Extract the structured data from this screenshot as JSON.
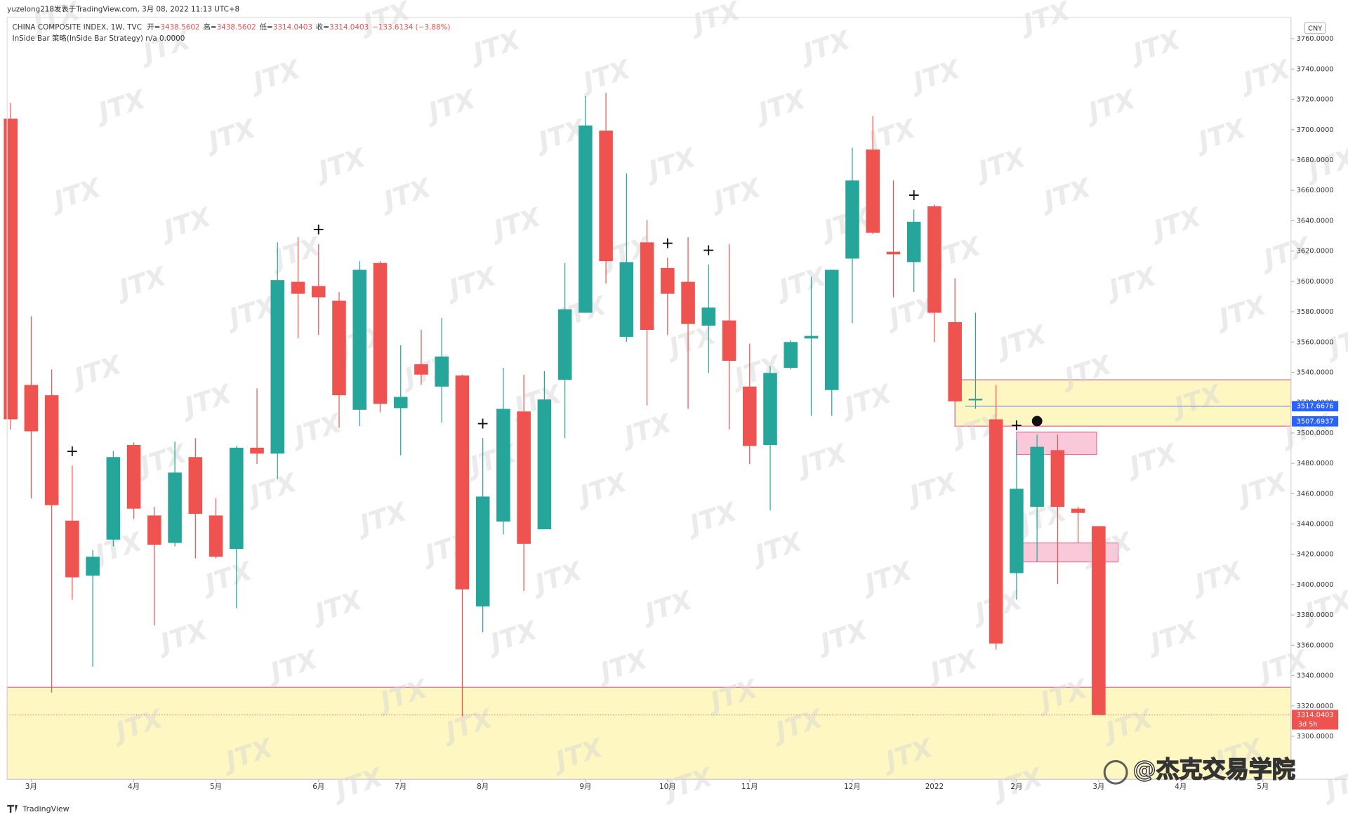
{
  "chart_data": {
    "type": "candlestick",
    "subtitle": "yuzelong218发表于TradingView.com, 3月 08, 2022 11:13 UTC+8",
    "title": "CHINA COMPOSITE INDEX, 1W, TVC",
    "ohlc_labels": [
      "开=",
      "高=",
      "低=",
      "收="
    ],
    "change": "−133.6134 (−3.88%)",
    "indicator": "InSide Bar 策略(InSide Bar Strategy)  n/a  0.0000",
    "currency": "CNY",
    "countdown": "3d 5h",
    "watermark": "JTX",
    "credit": "@杰克交易学院",
    "brand": "TradingView",
    "up_color": "#26a69a",
    "down_color": "#ef5350",
    "xlim": [
      -0.17,
      62.37
    ],
    "ylim": [
      3271.7,
      3774.2
    ],
    "xticks": [
      {
        "value": 1,
        "label": "3月"
      },
      {
        "value": 6,
        "label": "4月"
      },
      {
        "value": 10,
        "label": "5月"
      },
      {
        "value": 15,
        "label": "6月"
      },
      {
        "value": 19,
        "label": "7月"
      },
      {
        "value": 23,
        "label": "8月"
      },
      {
        "value": 28,
        "label": "9月"
      },
      {
        "value": 32,
        "label": "10月"
      },
      {
        "value": 36,
        "label": "11月"
      },
      {
        "value": 41,
        "label": "12月"
      },
      {
        "value": 45,
        "label": "2022"
      },
      {
        "value": 49,
        "label": "2月"
      },
      {
        "value": 53,
        "label": "3月"
      },
      {
        "value": 57,
        "label": "4月"
      },
      {
        "value": 61,
        "label": "5月"
      }
    ],
    "yticks": [
      {
        "value": 3300,
        "label": "3300.0000"
      },
      {
        "value": 3320,
        "label": "3320.0000"
      },
      {
        "value": 3340,
        "label": "3340.0000"
      },
      {
        "value": 3360,
        "label": "3360.0000"
      },
      {
        "value": 3380,
        "label": "3380.0000"
      },
      {
        "value": 3400,
        "label": "3400.0000"
      },
      {
        "value": 3420,
        "label": "3420.0000"
      },
      {
        "value": 3440,
        "label": "3440.0000"
      },
      {
        "value": 3460,
        "label": "3460.0000"
      },
      {
        "value": 3480,
        "label": "3480.0000"
      },
      {
        "value": 3500,
        "label": "3500.0000"
      },
      {
        "value": 3520,
        "label": "3520.0000"
      },
      {
        "value": 3540,
        "label": "3540.0000"
      },
      {
        "value": 3560,
        "label": "3560.0000"
      },
      {
        "value": 3580,
        "label": "3580.0000"
      },
      {
        "value": 3600,
        "label": "3600.0000"
      },
      {
        "value": 3620,
        "label": "3620.0000"
      },
      {
        "value": 3640,
        "label": "3640.0000"
      },
      {
        "value": 3660,
        "label": "3660.0000"
      },
      {
        "value": 3680,
        "label": "3680.0000"
      },
      {
        "value": 3700,
        "label": "3700.0000"
      },
      {
        "value": 3720,
        "label": "3720.0000"
      },
      {
        "value": 3740,
        "label": "3740.0000"
      },
      {
        "value": 3760,
        "label": "3760.0000"
      }
    ],
    "x": [
      0,
      1,
      2,
      3,
      4,
      5,
      6,
      7,
      8,
      9,
      10,
      11,
      12,
      13,
      14,
      15,
      16,
      17,
      18,
      19,
      20,
      21,
      22,
      23,
      24,
      25,
      26,
      27,
      28,
      29,
      30,
      31,
      32,
      33,
      34,
      35,
      36,
      37,
      38,
      39,
      40,
      41,
      42,
      43,
      44,
      45,
      46,
      47,
      48,
      49,
      50,
      51,
      52,
      53
    ],
    "candles": [
      {
        "o": 3707.3,
        "h": 3717.5,
        "l": 3502.2,
        "c": 3509.0
      },
      {
        "o": 3531.7,
        "h": 3577.0,
        "l": 3456.9,
        "c": 3501.1
      },
      {
        "o": 3524.9,
        "h": 3541.9,
        "l": 3328.9,
        "c": 3452.4
      },
      {
        "o": 3442.2,
        "h": 3478.5,
        "l": 3390.1,
        "c": 3404.8,
        "signal": "+"
      },
      {
        "o": 3405.9,
        "h": 3422.9,
        "l": 3345.9,
        "c": 3418.4
      },
      {
        "o": 3429.7,
        "h": 3488.1,
        "l": 3425.2,
        "c": 3484.1
      },
      {
        "o": 3492.1,
        "h": 3493.8,
        "l": 3443.3,
        "c": 3450.1
      },
      {
        "o": 3445.6,
        "h": 3451.3,
        "l": 3373.1,
        "c": 3426.3
      },
      {
        "o": 3427.5,
        "h": 3494.3,
        "l": 3425.2,
        "c": 3473.9
      },
      {
        "o": 3484.1,
        "h": 3496.6,
        "l": 3417.3,
        "c": 3446.7
      },
      {
        "o": 3445.6,
        "h": 3456.9,
        "l": 3417.3,
        "c": 3418.4
      },
      {
        "o": 3423.5,
        "h": 3491.5,
        "l": 3384.4,
        "c": 3490.3
      },
      {
        "o": 3490.3,
        "h": 3529.4,
        "l": 3479.6,
        "c": 3486.4
      },
      {
        "o": 3486.4,
        "h": 3625.7,
        "l": 3469.4,
        "c": 3600.8
      },
      {
        "o": 3599.7,
        "h": 3629.1,
        "l": 3562.3,
        "c": 3591.8
      },
      {
        "o": 3596.9,
        "h": 3624.6,
        "l": 3564.6,
        "c": 3589.5,
        "signal": "+"
      },
      {
        "o": 3587.2,
        "h": 3592.9,
        "l": 3503.4,
        "c": 3524.9
      },
      {
        "o": 3515.3,
        "h": 3613.3,
        "l": 3504.5,
        "c": 3607.6
      },
      {
        "o": 3612.1,
        "h": 3613.3,
        "l": 3513.6,
        "c": 3519.2
      },
      {
        "o": 3516.4,
        "h": 3557.8,
        "l": 3485.3,
        "c": 3523.8
      },
      {
        "o": 3545.3,
        "h": 3568.0,
        "l": 3531.7,
        "c": 3538.5
      },
      {
        "o": 3530.6,
        "h": 3575.9,
        "l": 3506.8,
        "c": 3550.4
      },
      {
        "o": 3537.9,
        "h": 3538.5,
        "l": 3313.0,
        "c": 3396.9
      },
      {
        "o": 3385.6,
        "h": 3496.6,
        "l": 3368.6,
        "c": 3458.1,
        "signal": "+"
      },
      {
        "o": 3441.6,
        "h": 3543.0,
        "l": 3433.1,
        "c": 3515.9
      },
      {
        "o": 3514.2,
        "h": 3538.5,
        "l": 3395.8,
        "c": 3426.9
      },
      {
        "o": 3436.5,
        "h": 3540.8,
        "l": 3436.5,
        "c": 3522.1
      },
      {
        "o": 3535.1,
        "h": 3612.1,
        "l": 3496.6,
        "c": 3581.6
      },
      {
        "o": 3579.3,
        "h": 3722.1,
        "l": 3579.3,
        "c": 3702.8
      },
      {
        "o": 3699.4,
        "h": 3724.3,
        "l": 3598.6,
        "c": 3613.3
      },
      {
        "o": 3563.4,
        "h": 3671.1,
        "l": 3560.0,
        "c": 3612.7
      },
      {
        "o": 3625.7,
        "h": 3640.5,
        "l": 3518.1,
        "c": 3568.0
      },
      {
        "o": 3608.8,
        "h": 3615.6,
        "l": 3564.6,
        "c": 3591.8,
        "signal": "+"
      },
      {
        "o": 3599.7,
        "h": 3629.1,
        "l": 3515.9,
        "c": 3571.9
      },
      {
        "o": 3570.8,
        "h": 3611.0,
        "l": 3539.6,
        "c": 3582.7,
        "signal": "+"
      },
      {
        "o": 3574.2,
        "h": 3624.6,
        "l": 3502.2,
        "c": 3547.6
      },
      {
        "o": 3530.6,
        "h": 3558.9,
        "l": 3479.6,
        "c": 3491.5
      },
      {
        "o": 3492.1,
        "h": 3544.2,
        "l": 3449.0,
        "c": 3539.6
      },
      {
        "o": 3543.0,
        "h": 3561.2,
        "l": 3541.9,
        "c": 3560.0
      },
      {
        "o": 3562.3,
        "h": 3603.1,
        "l": 3511.3,
        "c": 3564.0
      },
      {
        "o": 3528.3,
        "h": 3607.6,
        "l": 3511.3,
        "c": 3607.6
      },
      {
        "o": 3615.0,
        "h": 3688.1,
        "l": 3572.5,
        "c": 3666.5
      },
      {
        "o": 3686.9,
        "h": 3709.0,
        "l": 3631.4,
        "c": 3632.0
      },
      {
        "o": 3619.5,
        "h": 3666.5,
        "l": 3589.5,
        "c": 3617.8
      },
      {
        "o": 3612.7,
        "h": 3647.3,
        "l": 3592.9,
        "c": 3639.3,
        "signal": "+"
      },
      {
        "o": 3649.5,
        "h": 3650.7,
        "l": 3560.0,
        "c": 3579.3
      },
      {
        "o": 3573.1,
        "h": 3602.0,
        "l": 3520.4,
        "c": 3520.9
      },
      {
        "o": 3521.5,
        "h": 3579.3,
        "l": 3515.9,
        "c": 3522.6
      },
      {
        "o": 3509.0,
        "h": 3531.7,
        "l": 3357.2,
        "c": 3361.2
      },
      {
        "o": 3407.6,
        "h": 3495.5,
        "l": 3390.1,
        "c": 3463.2,
        "signal": "+"
      },
      {
        "o": 3451.3,
        "h": 3498.9,
        "l": 3415.0,
        "c": 3490.9,
        "signal": "●"
      },
      {
        "o": 3488.7,
        "h": 3498.9,
        "l": 3400.3,
        "c": 3451.3
      },
      {
        "o": 3450.1,
        "h": 3451.3,
        "l": 3427.5,
        "c": 3447.3
      },
      {
        "o": 3438.5602,
        "h": 3438.5602,
        "l": 3314.0403,
        "c": 3314.0403
      }
    ],
    "zones": [
      {
        "low": 3504.5,
        "high": 3535.1,
        "from_x": 46,
        "color": "#fff7c2",
        "stroke": "#f06292"
      },
      {
        "low": 3271.7,
        "high": 3332.3,
        "from_x": -0.17,
        "color": "#fff7c2",
        "stroke": "#f06292"
      }
    ],
    "boxes": [
      {
        "low": 3485.8,
        "high": 3500.6,
        "from_x": 49,
        "to_x": 52.9,
        "color": "#f8bbd0",
        "stroke": "#e57399"
      },
      {
        "low": 3415.0,
        "high": 3427.5,
        "from_x": 49.3,
        "to_x": 53.95,
        "color": "#f8bbd0",
        "stroke": "#e57399"
      }
    ],
    "price_lines": [
      {
        "value": 3517.6676,
        "color": "#2962ff"
      },
      {
        "value": 3507.6937,
        "color": "#2962ff"
      }
    ]
  }
}
